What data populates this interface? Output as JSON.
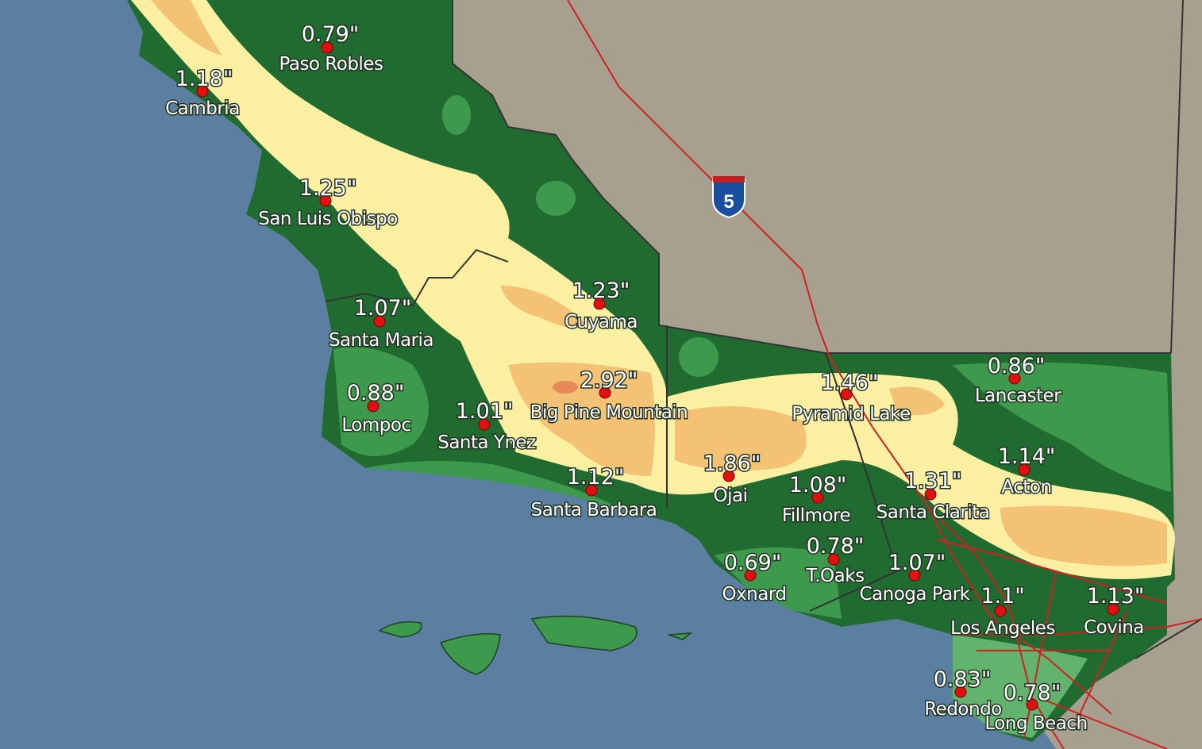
{
  "map": {
    "interstate_shield": "5",
    "colors": {
      "ocean": "#5a7fa0",
      "land": "#a8a08e",
      "rain_low": "#1f6b30",
      "rain_mid": "#3d9a4c",
      "rain_light": "#62b36d",
      "rain_high": "#fbf0a2",
      "rain_higher": "#f3c275",
      "rain_max": "#e8895a",
      "roads": "#d02020"
    },
    "stations": [
      {
        "value": "0.79\"",
        "name": "Paso Robles"
      },
      {
        "value": "1.18\"",
        "name": "Cambria"
      },
      {
        "value": "1.25\"",
        "name": "San Luis Obispo"
      },
      {
        "value": "1.07\"",
        "name": "Santa Maria"
      },
      {
        "value": "1.23\"",
        "name": "Cuyama"
      },
      {
        "value": "0.88\"",
        "name": "Lompoc"
      },
      {
        "value": "1.01\"",
        "name": "Santa Ynez"
      },
      {
        "value": "2.92\"",
        "name": "Big Pine Mountain"
      },
      {
        "value": "1.12\"",
        "name": "Santa Barbara"
      },
      {
        "value": "1.86\"",
        "name": "Ojai"
      },
      {
        "value": "1.08\"",
        "name": "Fillmore"
      },
      {
        "value": "1.46\"",
        "name": "Pyramid Lake"
      },
      {
        "value": "0.86\"",
        "name": "Lancaster"
      },
      {
        "value": "1.14\"",
        "name": "Acton"
      },
      {
        "value": "1.31\"",
        "name": "Santa Clarita"
      },
      {
        "value": "0.69\"",
        "name": "Oxnard"
      },
      {
        "value": "0.78\"",
        "name": "T.Oaks"
      },
      {
        "value": "1.07\"",
        "name": "Canoga Park"
      },
      {
        "value": "1.1\"",
        "name": "Los Angeles"
      },
      {
        "value": "1.13\"",
        "name": "Covina"
      },
      {
        "value": "0.83\"",
        "name": "Redondo"
      },
      {
        "value": "0.78\"",
        "name": "Long Beach"
      }
    ]
  }
}
